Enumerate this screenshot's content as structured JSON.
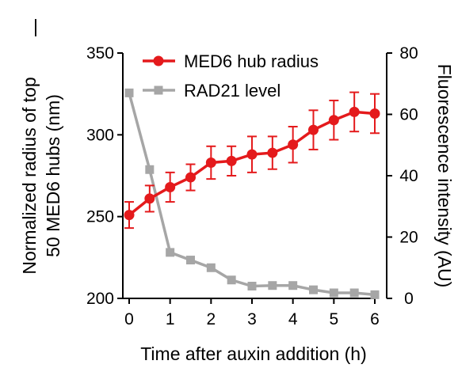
{
  "chart_data": {
    "type": "line",
    "title": "",
    "xlabel": "Time after auxin addition (h)",
    "ylabel_left": "Normalized radius of top 50 MED6 hubs (nm)",
    "ylabel_right": "Fluorescence intensity (AU)",
    "corner_mark": "|",
    "xlim": [
      0,
      6
    ],
    "xticks": [
      0,
      1,
      2,
      3,
      4,
      5,
      6
    ],
    "ylim_left": [
      200,
      350
    ],
    "yticks_left": [
      200,
      250,
      300,
      350
    ],
    "ylim_right": [
      0,
      80
    ],
    "yticks_right": [
      0,
      20,
      40,
      60,
      80
    ],
    "legend_position": "top-left",
    "grid": false,
    "series": [
      {
        "name": "MED6 hub radius",
        "axis": "left",
        "color": "#e41a1c",
        "marker": "circle",
        "x": [
          0,
          0.5,
          1,
          1.5,
          2,
          2.5,
          3,
          3.5,
          4,
          4.5,
          5,
          5.5,
          6
        ],
        "y": [
          251,
          261,
          268,
          274,
          283,
          284,
          288,
          289,
          294,
          303,
          309,
          314,
          313
        ],
        "err": [
          8,
          8,
          9,
          8,
          10,
          9,
          11,
          10,
          11,
          12,
          12,
          12,
          12
        ]
      },
      {
        "name": "RAD21 level",
        "axis": "right",
        "color": "#a6a6a6",
        "marker": "square",
        "x": [
          0,
          0.5,
          1,
          1.5,
          2,
          2.5,
          3,
          3.5,
          4,
          4.5,
          5,
          5.5,
          6
        ],
        "y": [
          67,
          42,
          15,
          12.5,
          10,
          6,
          4,
          4.2,
          4.2,
          2.8,
          1.8,
          1.8,
          1.2
        ]
      }
    ]
  }
}
